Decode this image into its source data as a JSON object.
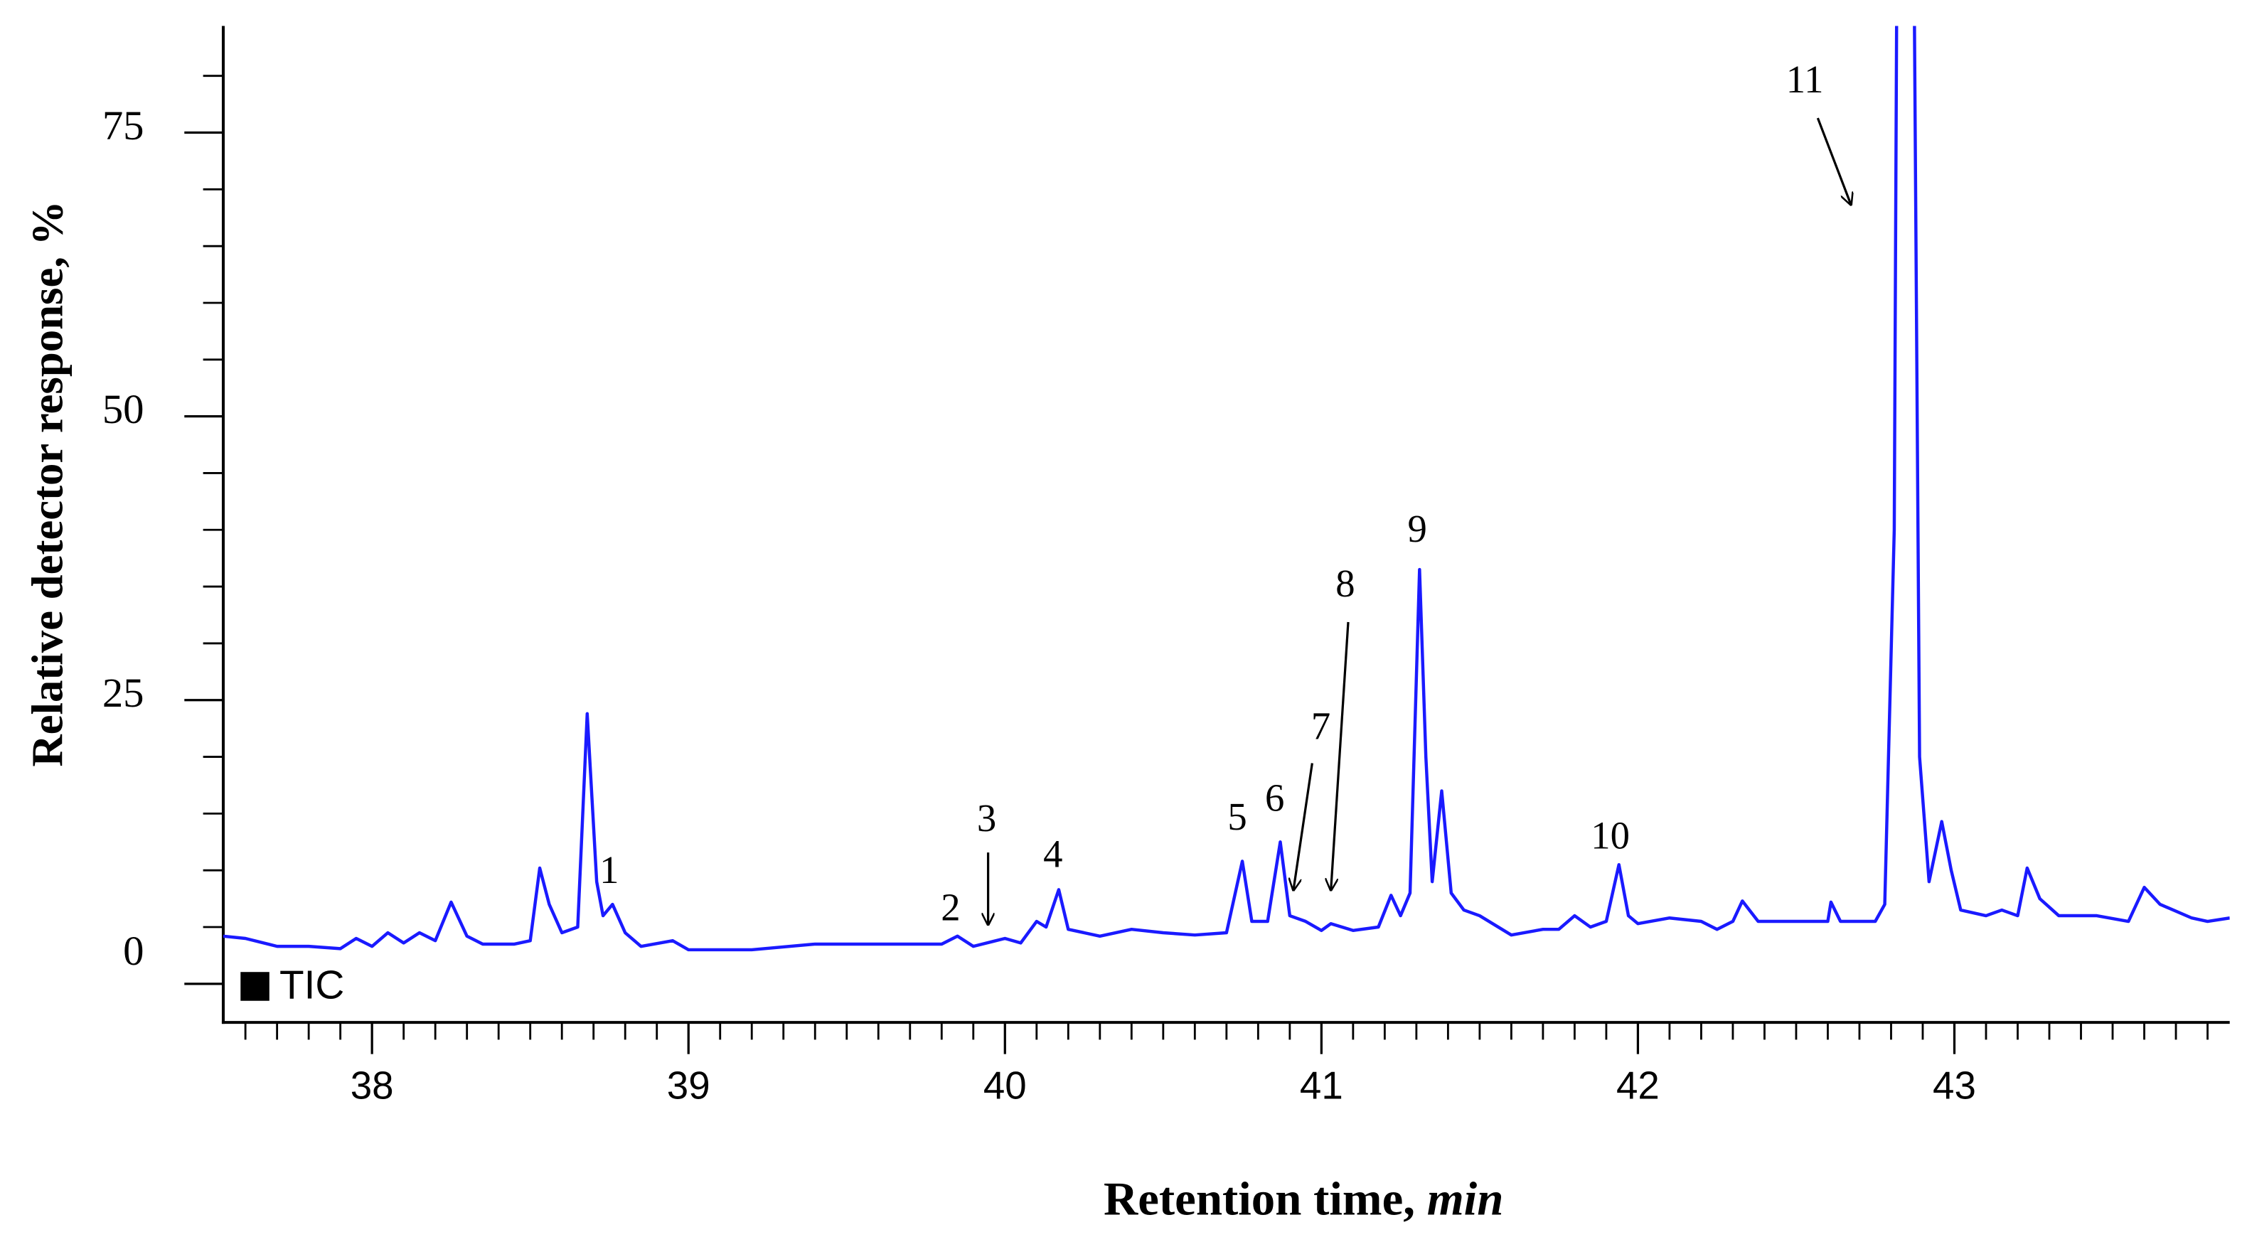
{
  "chart_data": {
    "type": "line",
    "ylabel": "Relative detector response, %",
    "xlabel": {
      "text": "Retention time,",
      "unit": "min"
    },
    "xlim": [
      37.53,
      43.87
    ],
    "ylim": [
      -3.4,
      84.4
    ],
    "xticks": [
      38,
      39,
      40,
      41,
      42,
      43
    ],
    "xminorticks": [
      37.6,
      37.7,
      37.8,
      37.9,
      38.1,
      38.2,
      38.3,
      38.4,
      38.5,
      38.6,
      38.7,
      38.8,
      38.9,
      39.1,
      39.2,
      39.3,
      39.4,
      39.5,
      39.6,
      39.7,
      39.8,
      39.9,
      40.1,
      40.2,
      40.3,
      40.4,
      40.5,
      40.6,
      40.7,
      40.8,
      40.9,
      41.1,
      41.2,
      41.3,
      41.4,
      41.5,
      41.6,
      41.7,
      41.8,
      41.9,
      42.1,
      42.2,
      42.3,
      42.4,
      42.5,
      42.6,
      42.7,
      42.8,
      42.9,
      43.1,
      43.2,
      43.3,
      43.4,
      43.5,
      43.6,
      43.7,
      43.8
    ],
    "yticks": [
      0,
      25,
      50,
      75
    ],
    "yminorticks": [
      5,
      10,
      15,
      20,
      30,
      35,
      40,
      45,
      55,
      60,
      65,
      70,
      80
    ],
    "legend": "lower left",
    "legend_marker_color": "#000000",
    "x": [
      37.53,
      37.6,
      37.7,
      37.8,
      37.9,
      37.95,
      38.0,
      38.05,
      38.1,
      38.15,
      38.2,
      38.25,
      38.3,
      38.35,
      38.45,
      38.5,
      38.53,
      38.56,
      38.6,
      38.65,
      38.68,
      38.71,
      38.73,
      38.76,
      38.8,
      38.85,
      38.95,
      39.0,
      39.2,
      39.4,
      39.6,
      39.8,
      39.85,
      39.9,
      40.0,
      40.05,
      40.1,
      40.13,
      40.17,
      40.2,
      40.3,
      40.4,
      40.5,
      40.6,
      40.7,
      40.75,
      40.78,
      40.83,
      40.87,
      40.9,
      40.95,
      41.0,
      41.03,
      41.1,
      41.18,
      41.22,
      41.25,
      41.28,
      41.31,
      41.33,
      41.35,
      41.38,
      41.41,
      41.45,
      41.5,
      41.6,
      41.7,
      41.75,
      41.8,
      41.85,
      41.9,
      41.94,
      41.97,
      42.0,
      42.1,
      42.2,
      42.25,
      42.3,
      42.33,
      42.38,
      42.5,
      42.6,
      42.61,
      42.64,
      42.75,
      42.78,
      42.81,
      42.82,
      42.87,
      42.89,
      42.92,
      42.96,
      42.99,
      43.02,
      43.1,
      43.15,
      43.2,
      43.23,
      43.27,
      43.33,
      43.45,
      43.55,
      43.6,
      43.65,
      43.75,
      43.8,
      43.87
    ],
    "series": [
      {
        "name": "TIC",
        "color": "#1a1aff",
        "values": [
          4.2,
          4.0,
          3.3,
          3.3,
          3.1,
          4.0,
          3.3,
          4.5,
          3.6,
          4.5,
          3.8,
          7.2,
          4.2,
          3.5,
          3.5,
          3.8,
          10.2,
          7.0,
          4.5,
          5.0,
          23.8,
          9.0,
          6.0,
          7.0,
          4.5,
          3.3,
          3.8,
          3.0,
          3.0,
          3.5,
          3.5,
          3.5,
          4.2,
          3.3,
          4.0,
          3.6,
          5.5,
          5.0,
          8.3,
          4.8,
          4.2,
          4.8,
          4.5,
          4.3,
          4.5,
          10.8,
          5.5,
          5.5,
          12.5,
          6.0,
          5.5,
          4.7,
          5.3,
          4.7,
          5.0,
          7.8,
          6.0,
          8.0,
          36.5,
          20,
          9.0,
          17.0,
          8.0,
          6.5,
          6.0,
          4.3,
          4.8,
          4.8,
          6.0,
          5.0,
          5.5,
          10.5,
          6.0,
          5.3,
          5.8,
          5.5,
          4.8,
          5.5,
          7.3,
          5.5,
          5.5,
          5.5,
          7.2,
          5.5,
          5.5,
          7.0,
          40,
          100,
          100,
          20,
          9,
          14.3,
          10,
          6.5,
          6.0,
          6.5,
          6.0,
          10.2,
          7.5,
          6.0,
          6.0,
          5.5,
          8.5,
          7.0,
          5.8,
          5.5,
          5.8
        ]
      }
    ],
    "annotations": [
      "1",
      "2",
      "3",
      "4",
      "5",
      "6",
      "7",
      "8",
      "9",
      "10",
      "11"
    ]
  }
}
